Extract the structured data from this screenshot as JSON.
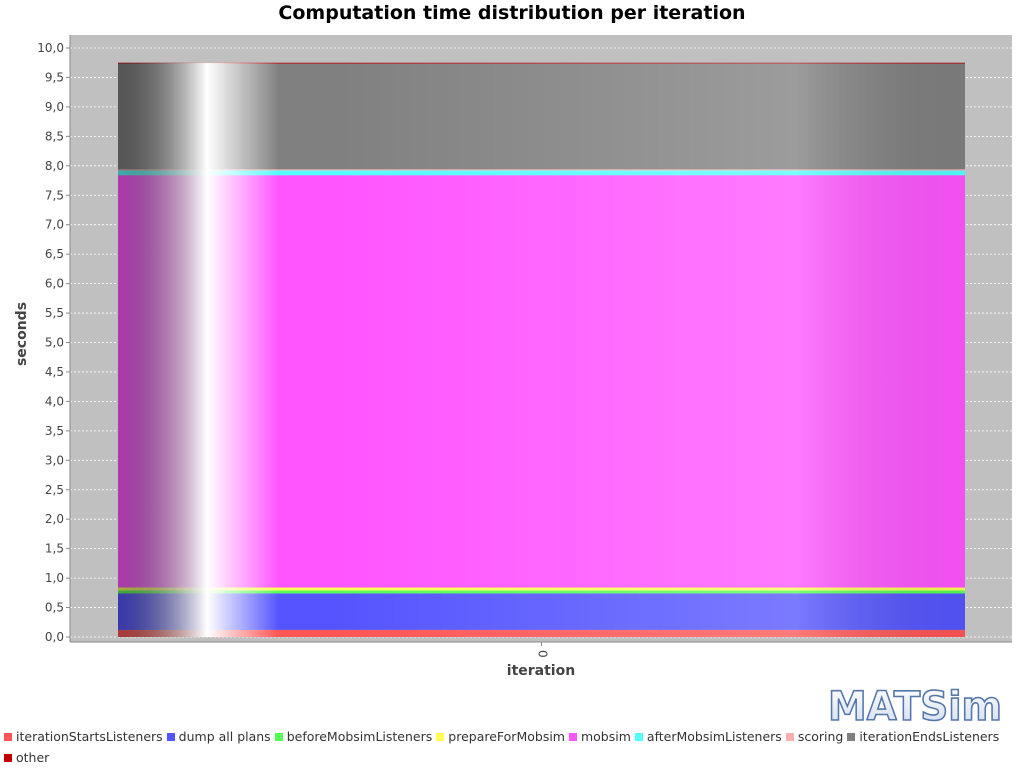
{
  "chart_data": {
    "type": "stacked-bar",
    "title": "Computation time distribution per iteration",
    "xlabel": "iteration",
    "ylabel": "seconds",
    "categories": [
      "0"
    ],
    "ylim": [
      0.0,
      10.0
    ],
    "yticks": [
      "0,0",
      "0,5",
      "1,0",
      "1,5",
      "2,0",
      "2,5",
      "3,0",
      "3,5",
      "4,0",
      "4,5",
      "5,0",
      "5,5",
      "6,0",
      "6,5",
      "7,0",
      "7,5",
      "8,0",
      "8,5",
      "9,0",
      "9,5",
      "10,0"
    ],
    "grid": true,
    "legend_position": "bottom",
    "series": [
      {
        "name": "iterationStartsListeners",
        "color": "#ff5555",
        "values": [
          0.12
        ]
      },
      {
        "name": "dump all plans",
        "color": "#5555ff",
        "values": [
          0.62
        ]
      },
      {
        "name": "beforeMobsimListeners",
        "color": "#55ff55",
        "values": [
          0.05
        ]
      },
      {
        "name": "prepareForMobsim",
        "color": "#ffff55",
        "values": [
          0.05
        ]
      },
      {
        "name": "mobsim",
        "color": "#ff55ff",
        "values": [
          7.0
        ]
      },
      {
        "name": "afterMobsimListeners",
        "color": "#55ffff",
        "values": [
          0.08
        ]
      },
      {
        "name": "scoring",
        "color": "#ffafaf",
        "values": [
          0.02
        ]
      },
      {
        "name": "iterationEndsListeners",
        "color": "#808080",
        "values": [
          1.8
        ]
      },
      {
        "name": "other",
        "color": "#c00000",
        "values": [
          0.01
        ]
      }
    ]
  },
  "logo": {
    "text": "MATSim"
  }
}
